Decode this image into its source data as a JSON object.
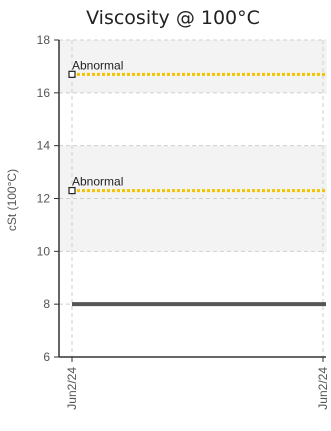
{
  "chart_data": {
    "type": "line",
    "title": "Viscosity @ 100°C",
    "xlabel": "",
    "ylabel": "cSt (100°C)",
    "x_ticks": [
      "Jun2/24",
      "Jun2/24"
    ],
    "ylim": [
      6,
      18
    ],
    "y_ticks": [
      6,
      8,
      10,
      12,
      14,
      16,
      18
    ],
    "grid": true,
    "bands": [
      {
        "from": 10,
        "to": 14,
        "color": "#f3f3f3"
      },
      {
        "from": 16,
        "to": 18,
        "color": "#f3f3f3"
      }
    ],
    "series": [
      {
        "value": 16.7,
        "style": "dotted",
        "color": "#f5c400"
      },
      {
        "value": 12.3,
        "style": "dotted",
        "color": "#f5c400"
      },
      {
        "value": 8.0,
        "style": "solid",
        "color": "#555555"
      }
    ],
    "annotations": [
      {
        "text": "Abnormal",
        "y": 16.7
      },
      {
        "text": "Abnormal",
        "y": 12.3
      }
    ]
  }
}
